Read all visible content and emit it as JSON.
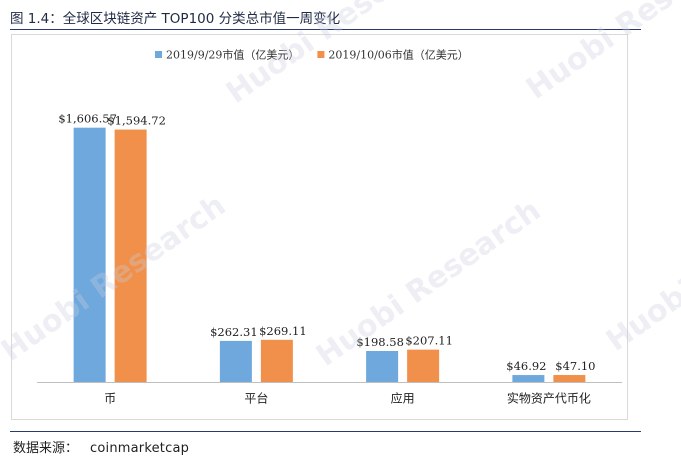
{
  "figure": {
    "title": "图 1.4：全球区块链资产 TOP100 分类总市值一周变化",
    "source_label": "数据来源：",
    "source_value": "coinmarketcap"
  },
  "watermark": {
    "text": "Huobi Research"
  },
  "colors": {
    "series_1": "#6fa8dc",
    "series_2": "#f0904a",
    "rule": "#2a3a6e"
  },
  "chart_data": {
    "type": "bar",
    "categories": [
      "币",
      "平台",
      "应用",
      "实物资产代币化"
    ],
    "series": [
      {
        "name": "2019/9/29市值（亿美元）",
        "values": [
          1606.57,
          262.31,
          198.58,
          46.92
        ],
        "labels": [
          "$1,606.57",
          "$262.31",
          "$198.58",
          "$46.92"
        ]
      },
      {
        "name": "2019/10/06市值（亿美元）",
        "values": [
          1594.72,
          269.11,
          207.11,
          47.1
        ],
        "labels": [
          "$1,594.72",
          "$269.11",
          "$207.11",
          "$47.10"
        ]
      }
    ],
    "ylim": [
      0,
      1800
    ],
    "grid": false,
    "legend": "top"
  }
}
